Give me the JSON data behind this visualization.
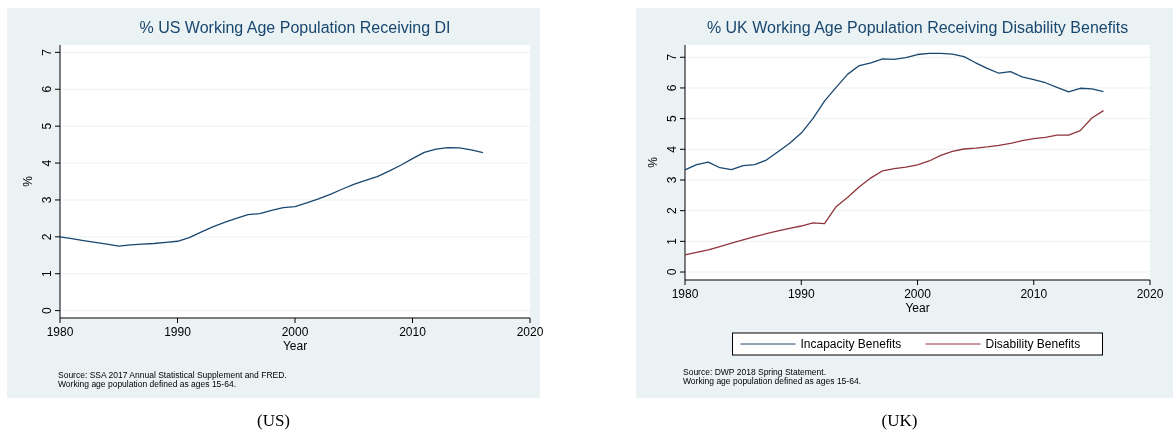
{
  "chart_data": [
    {
      "type": "line",
      "title": "% US Working Age Population Receiving DI",
      "xlabel": "Year",
      "ylabel": "%",
      "x": [
        1980,
        1981,
        1982,
        1983,
        1984,
        1985,
        1986,
        1987,
        1988,
        1989,
        1990,
        1991,
        1992,
        1993,
        1994,
        1995,
        1996,
        1997,
        1998,
        1999,
        2000,
        2001,
        2002,
        2003,
        2004,
        2005,
        2006,
        2007,
        2008,
        2009,
        2010,
        2011,
        2012,
        2013,
        2014,
        2015,
        2016
      ],
      "series": [
        {
          "color": "#1a476f",
          "values": [
            2.0,
            1.95,
            1.9,
            1.85,
            1.8,
            1.75,
            1.78,
            1.8,
            1.82,
            1.85,
            1.88,
            1.98,
            2.13,
            2.27,
            2.39,
            2.5,
            2.6,
            2.63,
            2.72,
            2.79,
            2.82,
            2.92,
            3.03,
            3.15,
            3.29,
            3.42,
            3.53,
            3.63,
            3.78,
            3.94,
            4.12,
            4.29,
            4.38,
            4.42,
            4.41,
            4.36,
            4.28
          ]
        }
      ],
      "xlim": [
        1980,
        2020
      ],
      "xticks": [
        1980,
        1990,
        2000,
        2010,
        2020
      ],
      "ylim": [
        -0.2,
        7.2
      ],
      "yticks": [
        0,
        1,
        2,
        3,
        4,
        5,
        6,
        7
      ],
      "grid": "y",
      "legend": false,
      "annotations": [
        "Source: SSA 2017 Annual Statistical Supplement and FRED.",
        "Working age population defined as ages 15-64.",
        "(US)"
      ]
    },
    {
      "type": "line",
      "title": "% UK Working Age Population Receiving Disability Benefits",
      "xlabel": "Year",
      "ylabel": "%",
      "x": [
        1980,
        1981,
        1982,
        1983,
        1984,
        1985,
        1986,
        1987,
        1988,
        1989,
        1990,
        1991,
        1992,
        1993,
        1994,
        1995,
        1996,
        1997,
        1998,
        1999,
        2000,
        2001,
        2002,
        2003,
        2004,
        2005,
        2006,
        2007,
        2008,
        2009,
        2010,
        2011,
        2012,
        2013,
        2014,
        2015,
        2016
      ],
      "series": [
        {
          "name": "Incapacity Benefits",
          "color": "#1a476f",
          "values": [
            3.33,
            3.5,
            3.58,
            3.4,
            3.34,
            3.47,
            3.5,
            3.65,
            3.92,
            4.2,
            4.53,
            5.0,
            5.57,
            6.02,
            6.45,
            6.73,
            6.82,
            6.95,
            6.93,
            6.99,
            7.09,
            7.13,
            7.13,
            7.1,
            7.02,
            6.82,
            6.64,
            6.48,
            6.53,
            6.36,
            6.27,
            6.17,
            6.02,
            5.87,
            5.99,
            5.97,
            5.88
          ]
        },
        {
          "name": "Disability Benefits",
          "color": "#90353b",
          "values": [
            0.56,
            0.64,
            0.72,
            0.83,
            0.94,
            1.05,
            1.15,
            1.25,
            1.34,
            1.42,
            1.5,
            1.6,
            1.58,
            2.13,
            2.44,
            2.78,
            3.07,
            3.3,
            3.37,
            3.42,
            3.49,
            3.62,
            3.8,
            3.93,
            4.01,
            4.04,
            4.08,
            4.13,
            4.19,
            4.28,
            4.35,
            4.39,
            4.46,
            4.46,
            4.61,
            5.02,
            5.26
          ]
        }
      ],
      "xlim": [
        1980,
        2020
      ],
      "xticks": [
        1980,
        1990,
        2000,
        2010,
        2020
      ],
      "ylim": [
        -0.26,
        7.4
      ],
      "yticks": [
        0,
        1,
        2,
        3,
        4,
        5,
        6,
        7
      ],
      "grid": "y",
      "legend": "bottom",
      "annotations": [
        "Source: DWP 2018 Spring Statement.",
        "Working age population defined as ages 15-64.",
        "(UK)"
      ]
    }
  ]
}
